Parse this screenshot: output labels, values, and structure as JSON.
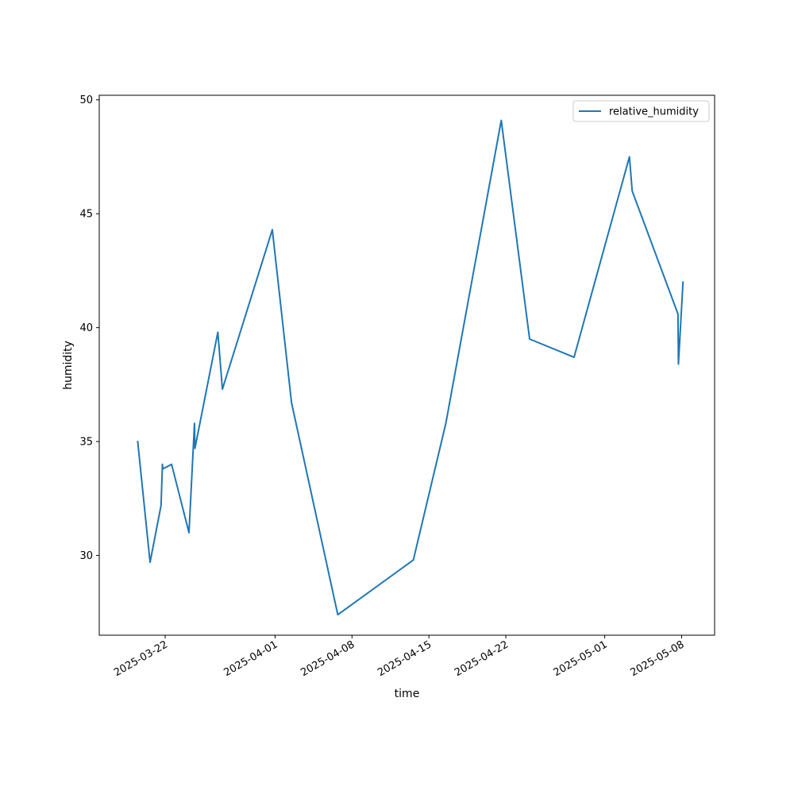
{
  "chart_data": {
    "type": "line",
    "xlabel": "time",
    "ylabel": "humidity",
    "x_type": "date",
    "xlim": [
      "2025-03-16",
      "2025-05-11"
    ],
    "ylim": [
      26.5,
      50.2
    ],
    "x_ticks": [
      "2025-03-22",
      "2025-04-01",
      "2025-04-08",
      "2025-04-15",
      "2025-04-22",
      "2025-05-01",
      "2025-05-08"
    ],
    "y_ticks": [
      30,
      35,
      40,
      45,
      50
    ],
    "legend": {
      "position": "upper right"
    },
    "grid": false,
    "series": [
      {
        "name": "relative_humidity",
        "color": "#1f77b4",
        "x": [
          "2025-03-19T12:00",
          "2025-03-20T15:00",
          "2025-03-21T15:00",
          "2025-03-21T18:00",
          "2025-03-21T19:00",
          "2025-03-22T14:00",
          "2025-03-24T04:00",
          "2025-03-24T16:00",
          "2025-03-24T17:00",
          "2025-03-26T19:00",
          "2025-03-27T05:00",
          "2025-03-31T18:00",
          "2025-04-02T12:00",
          "2025-04-06T17:00",
          "2025-04-13T14:00",
          "2025-04-16T13:00",
          "2025-04-21T14:00",
          "2025-04-24T04:00",
          "2025-04-28T05:00",
          "2025-05-03T06:00",
          "2025-05-03T12:00",
          "2025-05-07T16:00",
          "2025-05-07T17:00",
          "2025-05-08T03:00"
        ],
        "values": [
          35.0,
          29.7,
          32.2,
          34.0,
          33.8,
          34.0,
          31.0,
          35.8,
          34.7,
          39.8,
          37.3,
          44.3,
          36.7,
          27.4,
          29.8,
          35.8,
          49.1,
          39.5,
          38.7,
          47.5,
          46.0,
          40.6,
          38.4,
          42.0
        ]
      }
    ]
  }
}
